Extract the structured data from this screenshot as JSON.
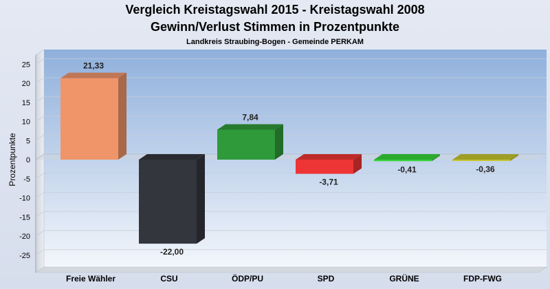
{
  "chart_data": {
    "type": "bar",
    "title": "Vergleich Kreistagswahl 2015 - Kreistagswahl 2008",
    "subtitle": "Gewinn/Verlust Stimmen in Prozentpunkte",
    "caption": "Landkreis Straubing-Bogen - Gemeinde PERKAM",
    "xlabel": "",
    "ylabel": "Prozentpunkte",
    "ylim": [
      -27.5,
      27.5
    ],
    "yticks": [
      25,
      20,
      15,
      10,
      5,
      0,
      -5,
      -10,
      -15,
      -20,
      -25
    ],
    "grid": true,
    "categories": [
      "Freie Wähler",
      "CSU",
      "ÖDP/PU",
      "SPD",
      "GRÜNE",
      "FDP-FWG"
    ],
    "values": [
      21.33,
      -22.0,
      7.84,
      -3.71,
      -0.41,
      -0.36
    ],
    "value_labels": [
      "21,33",
      "-22,00",
      "7,84",
      "-3,71",
      "-0,41",
      "-0,36"
    ],
    "colors": [
      "#f0956a",
      "#33363d",
      "#2f9a39",
      "#ee3535",
      "#37d43a",
      "#c6c62f"
    ]
  }
}
